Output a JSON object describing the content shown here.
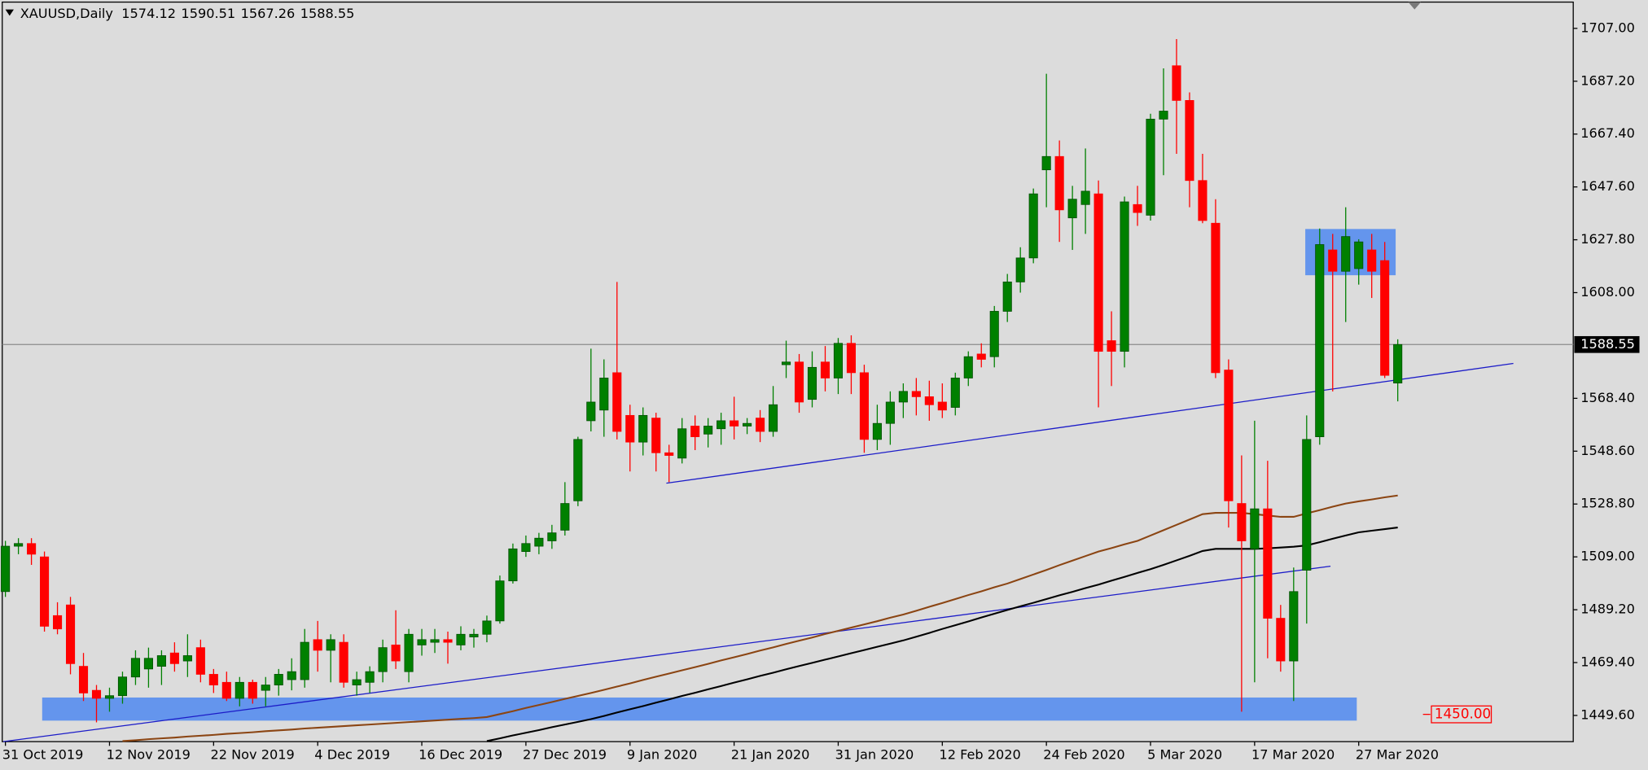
{
  "chart_data": {
    "type": "candlestick",
    "title": "XAUUSD,Daily",
    "up_color": "#008000",
    "down_color": "#ff0000",
    "categories": [
      "31 Oct 2019",
      null,
      null,
      null,
      null,
      null,
      null,
      null,
      "12 Nov 2019",
      null,
      null,
      null,
      null,
      null,
      null,
      null,
      "22 Nov 2019",
      null,
      null,
      null,
      null,
      null,
      null,
      null,
      "4 Dec 2019",
      null,
      null,
      null,
      null,
      null,
      null,
      null,
      "16 Dec 2019",
      null,
      null,
      null,
      null,
      null,
      null,
      null,
      "27 Dec 2019",
      null,
      null,
      null,
      null,
      null,
      null,
      null,
      "9 Jan 2020",
      null,
      null,
      null,
      null,
      null,
      null,
      null,
      "21 Jan 2020",
      null,
      null,
      null,
      null,
      null,
      null,
      null,
      "31 Jan 2020",
      null,
      null,
      null,
      null,
      null,
      null,
      null,
      "12 Feb 2020",
      null,
      null,
      null,
      null,
      null,
      null,
      null,
      "24 Feb 2020",
      null,
      null,
      null,
      null,
      null,
      null,
      null,
      "5 Mar 2020",
      null,
      null,
      null,
      null,
      null,
      null,
      null,
      "17 Mar 2020",
      null,
      null,
      null,
      null,
      null,
      null,
      null,
      "27 Mar 2020",
      null,
      null,
      null
    ],
    "values": [
      [
        1496,
        1515,
        1494,
        1513
      ],
      [
        1513,
        1516,
        1510,
        1514
      ],
      [
        1514,
        1516,
        1506,
        1510
      ],
      [
        1509,
        1511,
        1481,
        1483
      ],
      [
        1487,
        1492,
        1480,
        1482
      ],
      [
        1491,
        1494,
        1465,
        1469
      ],
      [
        1468,
        1473,
        1455,
        1458
      ],
      [
        1459,
        1461,
        1447,
        1456
      ],
      [
        1456,
        1460,
        1451,
        1457
      ],
      [
        1457,
        1466,
        1454,
        1464
      ],
      [
        1464,
        1474,
        1461,
        1471
      ],
      [
        1467,
        1475,
        1460,
        1471
      ],
      [
        1468,
        1474,
        1461,
        1472
      ],
      [
        1473,
        1477,
        1466,
        1469
      ],
      [
        1470,
        1480,
        1464,
        1472
      ],
      [
        1475,
        1478,
        1462,
        1465
      ],
      [
        1465,
        1467,
        1458,
        1461
      ],
      [
        1462,
        1466,
        1455,
        1456
      ],
      [
        1456,
        1464,
        1453,
        1462
      ],
      [
        1462,
        1463,
        1454,
        1456
      ],
      [
        1459,
        1464,
        1453,
        1461
      ],
      [
        1461,
        1467,
        1457,
        1465
      ],
      [
        1463,
        1471,
        1459,
        1466
      ],
      [
        1463,
        1482,
        1460,
        1477
      ],
      [
        1478,
        1485,
        1466,
        1474
      ],
      [
        1474,
        1480,
        1462,
        1478
      ],
      [
        1477,
        1480,
        1460,
        1462
      ],
      [
        1461,
        1466,
        1457,
        1463
      ],
      [
        1462,
        1468,
        1458,
        1466
      ],
      [
        1466,
        1478,
        1462,
        1475
      ],
      [
        1476,
        1489,
        1467,
        1470
      ],
      [
        1466,
        1482,
        1462,
        1480
      ],
      [
        1476,
        1482,
        1472,
        1478
      ],
      [
        1477,
        1482,
        1473,
        1478
      ],
      [
        1478,
        1481,
        1469,
        1477
      ],
      [
        1476,
        1483,
        1474,
        1480
      ],
      [
        1479,
        1482,
        1475,
        1480
      ],
      [
        1480,
        1487,
        1477,
        1485
      ],
      [
        1485,
        1502,
        1484,
        1500
      ],
      [
        1500,
        1514,
        1499,
        1512
      ],
      [
        1511,
        1517,
        1509,
        1514
      ],
      [
        1513,
        1518,
        1510,
        1516
      ],
      [
        1515,
        1521,
        1512,
        1518
      ],
      [
        1519,
        1537,
        1517,
        1529
      ],
      [
        1530,
        1554,
        1528,
        1553
      ],
      [
        1560,
        1587,
        1556,
        1567
      ],
      [
        1564,
        1583,
        1554,
        1576
      ],
      [
        1578,
        1612,
        1553,
        1556
      ],
      [
        1562,
        1566,
        1541,
        1552
      ],
      [
        1552,
        1565,
        1547,
        1562
      ],
      [
        1561,
        1563,
        1541,
        1548
      ],
      [
        1548,
        1551,
        1537,
        1547
      ],
      [
        1546,
        1561,
        1544,
        1557
      ],
      [
        1558,
        1562,
        1549,
        1554
      ],
      [
        1555,
        1561,
        1550,
        1558
      ],
      [
        1557,
        1563,
        1551,
        1560
      ],
      [
        1560,
        1569,
        1553,
        1558
      ],
      [
        1558,
        1561,
        1555,
        1559
      ],
      [
        1561,
        1564,
        1552,
        1556
      ],
      [
        1556,
        1573,
        1554,
        1566
      ],
      [
        1581,
        1590,
        1576,
        1582
      ],
      [
        1582,
        1585,
        1563,
        1567
      ],
      [
        1568,
        1586,
        1565,
        1580
      ],
      [
        1582,
        1588,
        1571,
        1576
      ],
      [
        1576,
        1591,
        1570,
        1589
      ],
      [
        1589,
        1592,
        1570,
        1578
      ],
      [
        1578,
        1581,
        1548,
        1553
      ],
      [
        1553,
        1566,
        1549,
        1559
      ],
      [
        1559,
        1571,
        1551,
        1567
      ],
      [
        1567,
        1574,
        1561,
        1571
      ],
      [
        1571,
        1576,
        1562,
        1569
      ],
      [
        1569,
        1575,
        1560,
        1566
      ],
      [
        1567,
        1574,
        1561,
        1564
      ],
      [
        1565,
        1578,
        1562,
        1576
      ],
      [
        1576,
        1586,
        1573,
        1584
      ],
      [
        1585,
        1589,
        1580,
        1583
      ],
      [
        1584,
        1603,
        1580,
        1601
      ],
      [
        1601,
        1615,
        1597,
        1612
      ],
      [
        1612,
        1625,
        1608,
        1621
      ],
      [
        1621,
        1647,
        1619,
        1645
      ],
      [
        1654,
        1690,
        1640,
        1659
      ],
      [
        1659,
        1665,
        1627,
        1639
      ],
      [
        1636,
        1648,
        1624,
        1643
      ],
      [
        1641,
        1662,
        1630,
        1646
      ],
      [
        1645,
        1650,
        1565,
        1586
      ],
      [
        1590,
        1601,
        1573,
        1586
      ],
      [
        1586,
        1644,
        1580,
        1642
      ],
      [
        1641,
        1648,
        1633,
        1638
      ],
      [
        1637,
        1675,
        1635,
        1673
      ],
      [
        1673,
        1692,
        1652,
        1676
      ],
      [
        1693,
        1703,
        1660,
        1680
      ],
      [
        1680,
        1683,
        1640,
        1650
      ],
      [
        1650,
        1660,
        1634,
        1635
      ],
      [
        1634,
        1643,
        1576,
        1578
      ],
      [
        1579,
        1583,
        1520,
        1530
      ],
      [
        1529,
        1547,
        1451,
        1515
      ],
      [
        1512,
        1560,
        1462,
        1527
      ],
      [
        1527,
        1545,
        1471,
        1486
      ],
      [
        1486,
        1491,
        1466,
        1470
      ],
      [
        1470,
        1505,
        1455,
        1496
      ],
      [
        1504,
        1562,
        1484,
        1553
      ],
      [
        1554,
        1632,
        1551,
        1626
      ],
      [
        1624,
        1630,
        1571,
        1616
      ],
      [
        1616,
        1640,
        1597,
        1629
      ],
      [
        1617,
        1628,
        1611,
        1627
      ],
      [
        1624,
        1630,
        1606,
        1616
      ],
      [
        1620,
        1627,
        1576,
        1577
      ],
      [
        1574.12,
        1590.51,
        1567.26,
        1588.55
      ]
    ],
    "lines": [
      {
        "color": "#8b4513",
        "values": [
          null,
          null,
          null,
          null,
          null,
          null,
          null,
          null,
          null,
          1440.0,
          1440.3,
          1440.7,
          1441.0,
          1441.3,
          1441.7,
          1442.0,
          1442.3,
          1442.7,
          1443.0,
          1443.3,
          1443.7,
          1444.0,
          1444.3,
          1444.7,
          1445.0,
          1445.3,
          1445.6,
          1445.9,
          1446.2,
          1446.5,
          1446.8,
          1447.1,
          1447.4,
          1447.7,
          1448.0,
          1448.3,
          1448.6,
          1449.0,
          1450.1,
          1451.2,
          1452.4,
          1453.5,
          1454.6,
          1455.8,
          1456.9,
          1458.0,
          1459.2,
          1460.4,
          1461.6,
          1462.9,
          1464.1,
          1465.3,
          1466.5,
          1467.7,
          1468.9,
          1470.2,
          1471.4,
          1472.6,
          1473.9,
          1475.1,
          1476.4,
          1477.6,
          1478.8,
          1480.1,
          1481.3,
          1482.5,
          1483.7,
          1484.9,
          1486.2,
          1487.4,
          1488.8,
          1490.3,
          1491.7,
          1493.2,
          1494.7,
          1496.1,
          1497.6,
          1499.0,
          1500.7,
          1502.4,
          1504.1,
          1505.9,
          1507.6,
          1509.3,
          1511.0,
          1512.3,
          1513.7,
          1515.0,
          1517.0,
          1519.0,
          1521.0,
          1523.0,
          1525.0,
          1525.5,
          1525.5,
          1525.5,
          1525.0,
          1524.5,
          1524.0,
          1524.0,
          1525.3,
          1526.5,
          1527.8,
          1529.0,
          1529.8,
          1530.5,
          1531.3,
          1532.0
        ]
      },
      {
        "color": "#000000",
        "values": [
          null,
          null,
          null,
          null,
          null,
          null,
          null,
          null,
          null,
          null,
          null,
          null,
          null,
          null,
          null,
          null,
          null,
          null,
          null,
          null,
          null,
          null,
          null,
          null,
          null,
          null,
          null,
          null,
          null,
          null,
          null,
          null,
          null,
          null,
          null,
          null,
          null,
          1440.0,
          1441.0,
          1442.1,
          1443.1,
          1444.1,
          1445.2,
          1446.2,
          1447.2,
          1448.2,
          1449.4,
          1450.7,
          1451.9,
          1453.1,
          1454.4,
          1455.6,
          1456.9,
          1458.1,
          1459.4,
          1460.6,
          1461.9,
          1463.1,
          1464.4,
          1465.6,
          1466.9,
          1468.1,
          1469.3,
          1470.5,
          1471.7,
          1472.9,
          1474.1,
          1475.3,
          1476.5,
          1477.7,
          1479.1,
          1480.5,
          1482.0,
          1483.4,
          1484.8,
          1486.3,
          1487.7,
          1489.1,
          1490.5,
          1491.8,
          1493.2,
          1494.6,
          1495.9,
          1497.3,
          1498.6,
          1500.1,
          1501.5,
          1503.0,
          1504.4,
          1506.0,
          1507.7,
          1509.4,
          1511.2,
          1512.0,
          1512.0,
          1512.0,
          1512.0,
          1512.2,
          1512.5,
          1512.8,
          1513.3,
          1514.5,
          1515.8,
          1517.0,
          1518.2,
          1518.8,
          1519.4,
          1520.0
        ]
      }
    ],
    "ylim": [
      1439.78,
      1716.84
    ],
    "yticks": [
      {
        "value": 1449.6,
        "label": "1449.60"
      },
      {
        "value": 1469.4,
        "label": "1469.40"
      },
      {
        "value": 1489.2,
        "label": "1489.20"
      },
      {
        "value": 1509,
        "label": "1509.00"
      },
      {
        "value": 1528.8,
        "label": "1528.80"
      },
      {
        "value": 1548.6,
        "label": "1548.60"
      },
      {
        "value": 1568.4,
        "label": "1568.40"
      },
      {
        "value": 1608,
        "label": "1608.00"
      },
      {
        "value": 1627.8,
        "label": "1627.80"
      },
      {
        "value": 1647.6,
        "label": "1647.60"
      },
      {
        "value": 1667.4,
        "label": "1667.40"
      },
      {
        "value": 1687.2,
        "label": "1687.20"
      },
      {
        "value": 1707,
        "label": "1707.00"
      }
    ],
    "alert_level": {
      "value": 1450,
      "label": "1450.00"
    }
  }
}
